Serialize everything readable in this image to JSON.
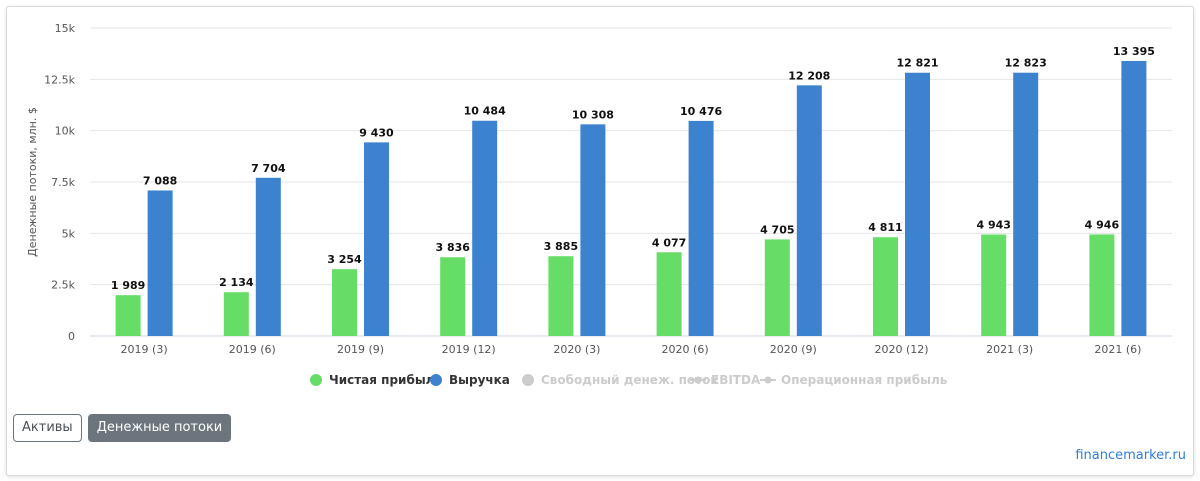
{
  "chart_data": {
    "type": "bar",
    "categories": [
      "2019 (3)",
      "2019 (6)",
      "2019 (9)",
      "2019 (12)",
      "2020 (3)",
      "2020 (6)",
      "2020 (9)",
      "2020 (12)",
      "2021 (3)",
      "2021 (6)"
    ],
    "series": [
      {
        "name": "Чистая прибыль",
        "color": "#66dd66",
        "values": [
          1989,
          2134,
          3254,
          3836,
          3885,
          4077,
          4705,
          4811,
          4943,
          4946
        ],
        "labels": [
          "1 989",
          "2 134",
          "3 254",
          "3 836",
          "3 885",
          "4 077",
          "4 705",
          "4 811",
          "4 943",
          "4 946"
        ]
      },
      {
        "name": "Выручка",
        "color": "#3d82cf",
        "values": [
          7088,
          7704,
          9430,
          10484,
          10308,
          10476,
          12208,
          12821,
          12823,
          13395
        ],
        "labels": [
          "7 088",
          "7 704",
          "9 430",
          "10 484",
          "10 308",
          "10 476",
          "12 208",
          "12 821",
          "12 823",
          "13 395"
        ]
      }
    ],
    "ylabel": "Денежные потоки, млн. $",
    "ylim": [
      0,
      15000
    ],
    "yticks": [
      0,
      2500,
      5000,
      7500,
      10000,
      12500,
      15000
    ],
    "ytick_labels": [
      "0",
      "2.5k",
      "5k",
      "7.5k",
      "10k",
      "12.5k",
      "15k"
    ],
    "grid": true,
    "legend": {
      "placement": "bottom-center",
      "items": [
        {
          "label": "Чистая прибыль",
          "color": "#66dd66",
          "marker": "circle",
          "active": true
        },
        {
          "label": "Выручка",
          "color": "#3d82cf",
          "marker": "circle",
          "active": true
        },
        {
          "label": "Свободный денеж. поток",
          "color": "#cccccc",
          "marker": "circle",
          "active": false
        },
        {
          "label": "EBITDA",
          "color": "#cccccc",
          "marker": "line",
          "active": false
        },
        {
          "label": "Операционная прибыль",
          "color": "#cccccc",
          "marker": "line",
          "active": false
        }
      ]
    }
  },
  "buttons": {
    "assets": "Активы",
    "cashflows": "Денежные потоки"
  },
  "brand": "financemarker.ru"
}
